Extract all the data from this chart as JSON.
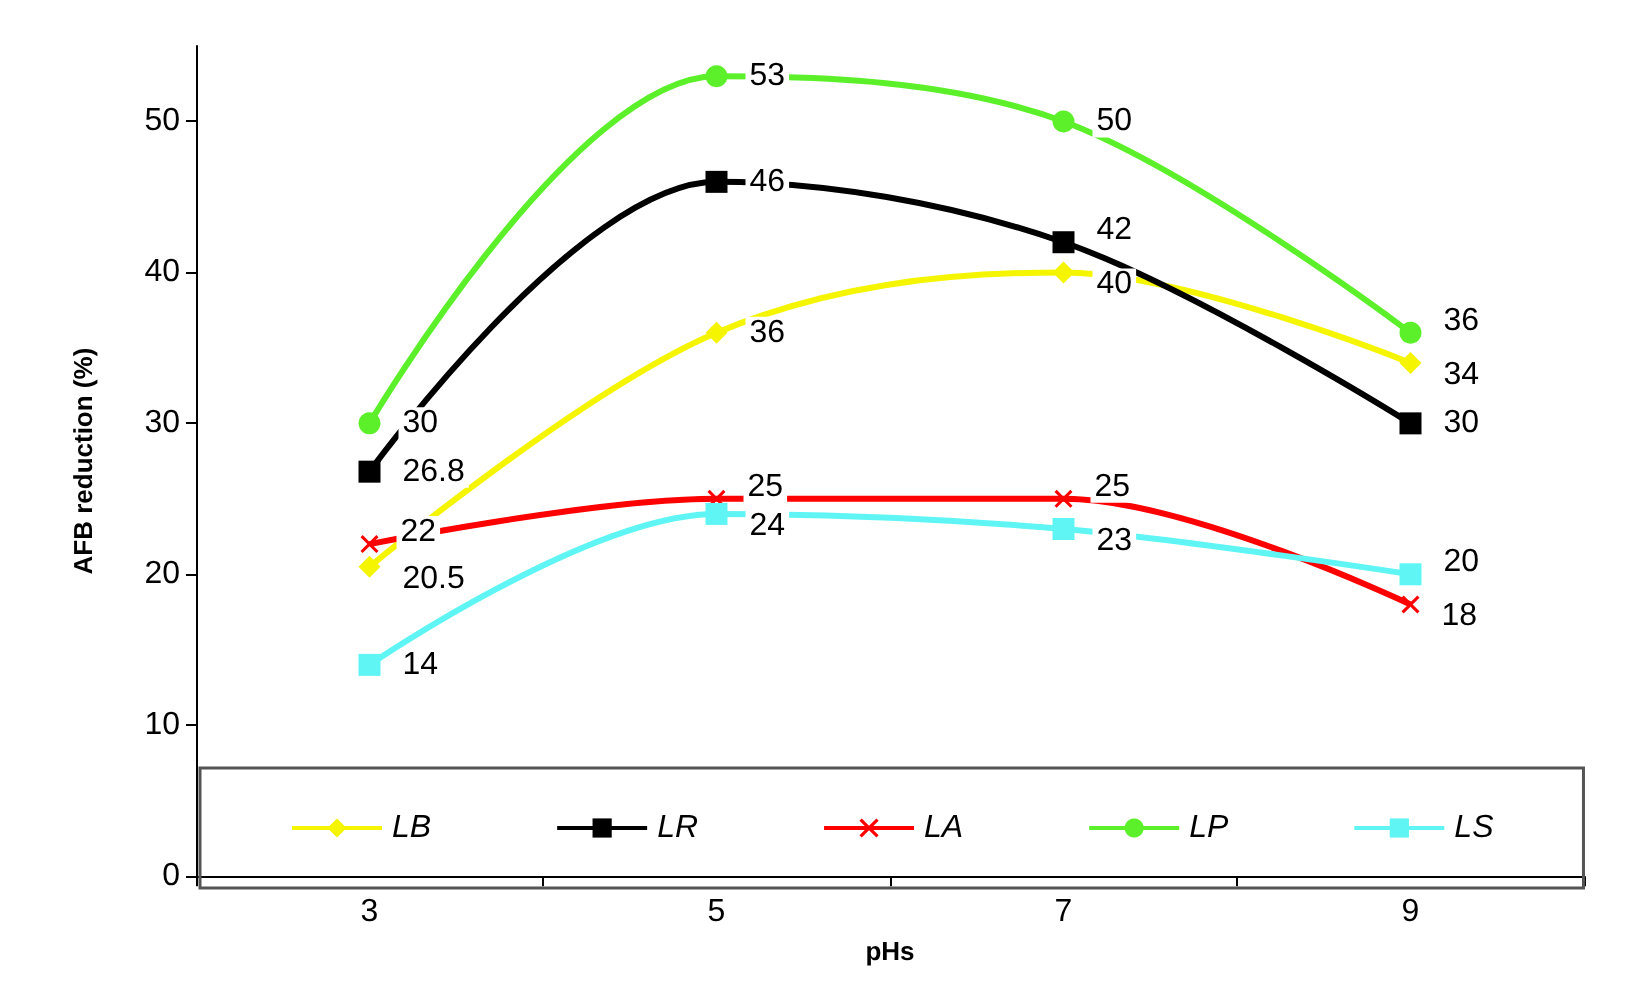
{
  "chart_data": {
    "type": "line",
    "xlabel": "pHs",
    "ylabel": "AFB reduction (%)",
    "categories": [
      "3",
      "5",
      "7",
      "9"
    ],
    "series": [
      {
        "name": "LB",
        "color": "#f5f500",
        "marker": "diamond",
        "values": [
          20.5,
          36,
          40,
          34
        ]
      },
      {
        "name": "LR",
        "color": "#000000",
        "marker": "square",
        "values": [
          26.8,
          46,
          42,
          30
        ]
      },
      {
        "name": "LA",
        "color": "#ff0000",
        "marker": "cross",
        "values": [
          22,
          25,
          25,
          18
        ]
      },
      {
        "name": "LP",
        "color": "#5cf02a",
        "marker": "circle",
        "values": [
          30,
          53,
          50,
          36
        ]
      },
      {
        "name": "LS",
        "color": "#5ff5f5",
        "marker": "square",
        "values": [
          14,
          24,
          23,
          20
        ]
      }
    ],
    "ylim": [
      0,
      55
    ],
    "yticks": [
      0,
      10,
      20,
      30,
      40,
      50
    ],
    "grid": false,
    "legend": "bottom",
    "data_labels": true,
    "line_style": "solid"
  }
}
